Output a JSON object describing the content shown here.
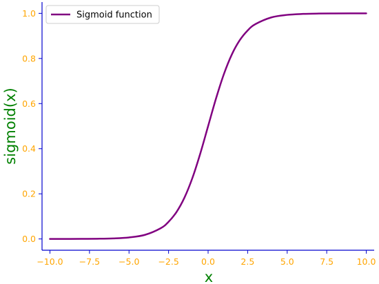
{
  "chart_data": {
    "type": "line",
    "title": "",
    "xlabel": "x",
    "ylabel": "sigmoid(x)",
    "xlim": [
      -10.5,
      10.5
    ],
    "ylim": [
      -0.05,
      1.05
    ],
    "x_ticks": [
      -10.0,
      -7.5,
      -5.0,
      -2.5,
      0.0,
      2.5,
      5.0,
      7.5,
      10.0
    ],
    "x_tick_labels": [
      "−10.0",
      "−7.5",
      "−5.0",
      "−2.5",
      "0.0",
      "2.5",
      "5.0",
      "7.5",
      "10.0"
    ],
    "y_ticks": [
      0.0,
      0.2,
      0.4,
      0.6,
      0.8,
      1.0
    ],
    "y_tick_labels": [
      "0.0",
      "0.2",
      "0.4",
      "0.6",
      "0.8",
      "1.0"
    ],
    "grid": false,
    "legend_position": "top-left",
    "series": [
      {
        "name": "Sigmoid function",
        "color": "#800080",
        "x": [
          -10,
          -9,
          -8,
          -7,
          -6,
          -5,
          -4,
          -3,
          -2.5,
          -2,
          -1.5,
          -1,
          -0.5,
          0,
          0.5,
          1,
          1.5,
          2,
          2.5,
          3,
          4,
          5,
          6,
          7,
          8,
          9,
          10
        ],
        "y": [
          4.54e-05,
          0.000123,
          0.000335,
          0.000911,
          0.00247,
          0.00669,
          0.018,
          0.0474,
          0.0759,
          0.1192,
          0.1824,
          0.2689,
          0.3775,
          0.5,
          0.6225,
          0.7311,
          0.8176,
          0.8808,
          0.9241,
          0.9526,
          0.982,
          0.9933,
          0.9975,
          0.9991,
          0.99966,
          0.99988,
          0.99995
        ]
      }
    ]
  },
  "colors": {
    "axes": "#0000cd",
    "tick_labels": "#ffa500",
    "axis_titles": "#008000",
    "line": "#800080"
  }
}
